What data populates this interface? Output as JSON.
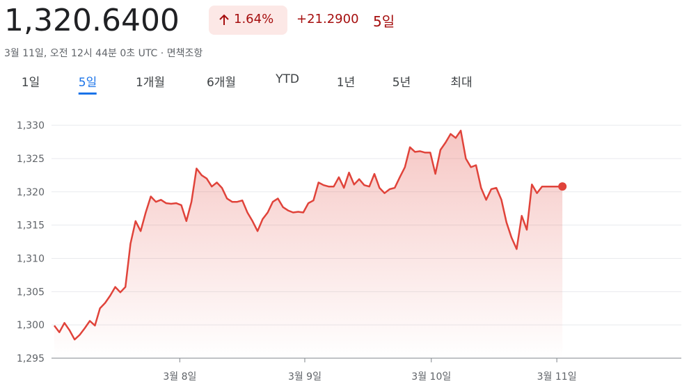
{
  "header": {
    "price": "1,320.6400",
    "change_percent": "1.64%",
    "change": "+21.2900",
    "period": "5일",
    "timestamp": "3월 11일, 오전 12시 44분 0초 UTC · ",
    "disclaimer": "면책조항"
  },
  "tabs": {
    "items": [
      "1일",
      "5일",
      "1개월",
      "6개월",
      "YTD",
      "1년",
      "5년",
      "최대"
    ],
    "selected": 1
  },
  "chart_data": {
    "type": "line",
    "color": "#e0433a",
    "grid": true,
    "values": [
      1299.9,
      1298.9,
      1300.3,
      1299.2,
      1297.8,
      1298.5,
      1299.5,
      1300.6,
      1299.9,
      1302.5,
      1303.3,
      1304.4,
      1305.7,
      1304.9,
      1305.7,
      1312.2,
      1315.6,
      1314.1,
      1316.9,
      1319.3,
      1318.5,
      1318.8,
      1318.3,
      1318.2,
      1318.3,
      1318.0,
      1315.6,
      1318.5,
      1323.5,
      1322.5,
      1322.0,
      1320.8,
      1321.4,
      1320.6,
      1319.0,
      1318.5,
      1318.5,
      1318.7,
      1316.9,
      1315.6,
      1314.1,
      1315.9,
      1316.9,
      1318.5,
      1319.0,
      1317.7,
      1317.2,
      1316.9,
      1317.0,
      1316.9,
      1318.3,
      1318.7,
      1321.4,
      1321.0,
      1320.8,
      1320.8,
      1322.2,
      1320.6,
      1322.9,
      1321.1,
      1321.9,
      1321.0,
      1320.8,
      1322.7,
      1320.6,
      1319.8,
      1320.4,
      1320.6,
      1322.2,
      1323.7,
      1326.7,
      1326.0,
      1326.1,
      1325.9,
      1325.9,
      1322.7,
      1326.3,
      1327.4,
      1328.7,
      1328.1,
      1329.2,
      1325.0,
      1323.7,
      1324.0,
      1320.6,
      1318.8,
      1320.4,
      1320.6,
      1318.8,
      1315.4,
      1313.1,
      1311.4,
      1316.4,
      1314.3,
      1321.1,
      1319.8,
      1320.8,
      1320.8,
      1320.8,
      1320.8,
      1320.8
    ],
    "xlim": [
      0,
      123.4
    ],
    "xticks": [
      {
        "value": 24.7,
        "label": "3월 8일"
      },
      {
        "value": 49.3,
        "label": "3월 9일"
      },
      {
        "value": 74.2,
        "label": "3월 10일"
      },
      {
        "value": 98.9,
        "label": "3월 11일"
      }
    ],
    "ylim": [
      1295,
      1332
    ],
    "yticks": [
      {
        "value": 1295,
        "label": "1,295"
      },
      {
        "value": 1300,
        "label": "1,300"
      },
      {
        "value": 1305,
        "label": "1,305"
      },
      {
        "value": 1310,
        "label": "1,310"
      },
      {
        "value": 1315,
        "label": "1,315"
      },
      {
        "value": 1320,
        "label": "1,320"
      },
      {
        "value": 1325,
        "label": "1,325"
      },
      {
        "value": 1330,
        "label": "1,330"
      }
    ]
  }
}
